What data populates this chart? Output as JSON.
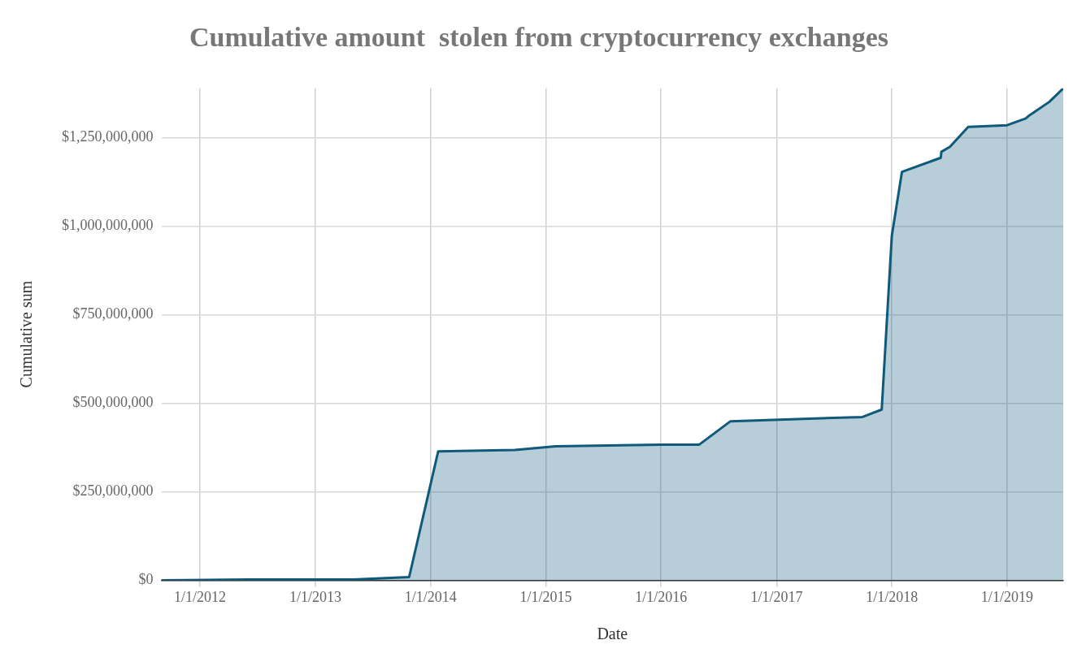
{
  "chart_data": {
    "type": "area",
    "title": "Cumulative amount  stolen from cryptocurrency exchanges",
    "xlabel": "Date",
    "ylabel": "Cumulative sum",
    "x": [
      "2011-09-01",
      "2012-06-01",
      "2013-05-01",
      "2013-10-25",
      "2014-01-25",
      "2014-09-25",
      "2015-02-01",
      "2016-01-01",
      "2016-05-01",
      "2016-08-08",
      "2017-09-30",
      "2017-11-30",
      "2018-01-01",
      "2018-02-02",
      "2018-06-05",
      "2018-06-07",
      "2018-07-04",
      "2018-08-31",
      "2019-01-01",
      "2019-03-01",
      "2019-03-10",
      "2019-05-15",
      "2019-06-28"
    ],
    "series": [
      {
        "color": "#0f5a7a",
        "values": [
          0,
          2000000,
          2000000,
          9000000,
          364000000,
          368000000,
          378000000,
          383000000,
          383000000,
          449000000,
          461000000,
          482000000,
          973000000,
          1153000000,
          1193000000,
          1210000000,
          1224000000,
          1280000000,
          1285000000,
          1304000000,
          1311000000,
          1351000000,
          1389000000
        ]
      }
    ],
    "xlim": [
      "2011-09-01",
      "2019-06-28"
    ],
    "xticks": [
      {
        "value": "2012-01-01",
        "label": "1/1/2012"
      },
      {
        "value": "2013-01-01",
        "label": "1/1/2013"
      },
      {
        "value": "2014-01-01",
        "label": "1/1/2014"
      },
      {
        "value": "2015-01-01",
        "label": "1/1/2015"
      },
      {
        "value": "2016-01-01",
        "label": "1/1/2016"
      },
      {
        "value": "2017-01-01",
        "label": "1/1/2017"
      },
      {
        "value": "2018-01-01",
        "label": "1/1/2018"
      },
      {
        "value": "2019-01-01",
        "label": "1/1/2019"
      }
    ],
    "ylim": [
      0,
      1389000000
    ],
    "yticks": [
      {
        "value": 0,
        "label": "$0"
      },
      {
        "value": 250000000,
        "label": "$250,000,000"
      },
      {
        "value": 500000000,
        "label": "$500,000,000"
      },
      {
        "value": 750000000,
        "label": "$750,000,000"
      },
      {
        "value": 1000000000,
        "label": "$1,000,000,000"
      },
      {
        "value": 1250000000,
        "label": "$1,250,000,000"
      }
    ],
    "grid": true,
    "legend": false
  }
}
